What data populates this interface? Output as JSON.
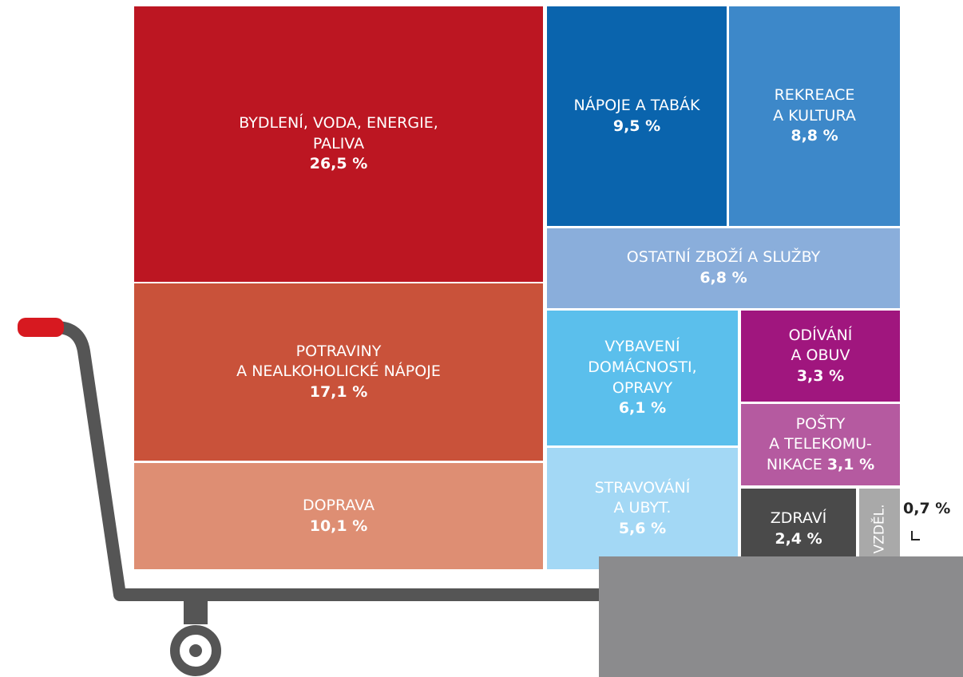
{
  "chart_data": {
    "type": "treemap",
    "categories": [
      "BYDLENÍ, VODA, ENERGIE,\nPALIVA",
      "POTRAVINY\nA NEALKOHOLICKÉ NÁPOJE",
      "DOPRAVA",
      "NÁPOJE A TABÁK",
      "REKREACE\nA KULTURA",
      "OSTATNÍ ZBOŽÍ A SLUŽBY",
      "VYBAVENÍ\nDOMÁCNOSTI,\nOPRAVY",
      "STRAVOVÁNÍ\nA UBYT.",
      "ODÍVÁNÍ\nA OBUV",
      "POŠTY\nA TELEKOMU-\nNIKACE",
      "ZDRAVÍ",
      "VZDĚL."
    ],
    "values": [
      26.5,
      17.1,
      10.1,
      9.5,
      8.8,
      6.8,
      6.1,
      5.6,
      3.3,
      3.1,
      2.4,
      0.7
    ],
    "value_labels": [
      "26,5 %",
      "17,1 %",
      "10,1 %",
      "9,5 %",
      "8,8 %",
      "6,8 %",
      "6,1 %",
      "5,6 %",
      "3,3 %",
      "3,1 %",
      "2,4 %",
      "0,7 %"
    ],
    "colors": [
      "#bc1622",
      "#c9523a",
      "#de8e73",
      "#0a64ad",
      "#3d88c9",
      "#8aaedb",
      "#5bbfec",
      "#a3d8f5",
      "#a0167e",
      "#b55aa0",
      "#4a4a4a",
      "#a9a9a9"
    ]
  }
}
